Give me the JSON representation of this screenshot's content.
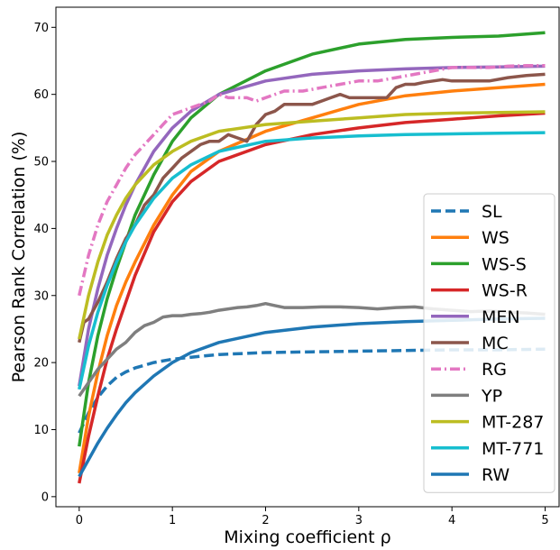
{
  "chart_data": {
    "type": "line",
    "xlabel": "Mixing coefficient ρ",
    "ylabel": "Pearson Rank Correlation (%)",
    "xlim": [
      -0.25,
      5.15
    ],
    "ylim": [
      -1.5,
      73
    ],
    "xticks": [
      0,
      1,
      2,
      3,
      4,
      5
    ],
    "yticks": [
      0,
      10,
      20,
      30,
      40,
      50,
      60,
      70
    ],
    "grid": false,
    "legend_position": "lower-right",
    "series": [
      {
        "name": "SL",
        "color": "#1f77b4",
        "style": "dashed",
        "x": [
          0,
          0.1,
          0.2,
          0.3,
          0.4,
          0.5,
          0.6,
          0.8,
          1.0,
          1.2,
          1.5,
          2.0,
          2.5,
          3.0,
          3.5,
          4.0,
          4.5,
          5.0
        ],
        "y": [
          9.5,
          12.5,
          14.8,
          16.5,
          17.8,
          18.6,
          19.2,
          20.0,
          20.5,
          20.8,
          21.2,
          21.5,
          21.6,
          21.7,
          21.8,
          21.9,
          21.9,
          22.0
        ]
      },
      {
        "name": "WS",
        "color": "#ff7f0e",
        "style": "solid",
        "x": [
          0,
          0.1,
          0.2,
          0.3,
          0.4,
          0.5,
          0.6,
          0.8,
          1.0,
          1.2,
          1.5,
          2.0,
          2.5,
          3.0,
          3.5,
          4.0,
          4.5,
          5.0
        ],
        "y": [
          3.5,
          12.0,
          18.5,
          24.0,
          28.5,
          32.0,
          35.0,
          40.5,
          45.0,
          48.5,
          51.5,
          54.5,
          56.5,
          58.5,
          59.8,
          60.5,
          61.0,
          61.5
        ]
      },
      {
        "name": "WS-S",
        "color": "#2ca02c",
        "style": "solid",
        "x": [
          0,
          0.1,
          0.2,
          0.3,
          0.4,
          0.5,
          0.6,
          0.8,
          1.0,
          1.2,
          1.5,
          2.0,
          2.5,
          3.0,
          3.5,
          4.0,
          4.5,
          5.0
        ],
        "y": [
          7.5,
          17.0,
          24.0,
          29.5,
          34.0,
          38.0,
          42.0,
          48.0,
          53.0,
          56.5,
          60.0,
          63.5,
          66.0,
          67.5,
          68.2,
          68.5,
          68.7,
          69.2
        ]
      },
      {
        "name": "WS-R",
        "color": "#d62728",
        "style": "solid",
        "x": [
          0,
          0.1,
          0.2,
          0.3,
          0.4,
          0.5,
          0.6,
          0.8,
          1.0,
          1.2,
          1.5,
          2.0,
          2.5,
          3.0,
          3.5,
          4.0,
          4.5,
          5.0
        ],
        "y": [
          2.0,
          9.0,
          15.0,
          20.5,
          25.0,
          29.0,
          33.0,
          39.5,
          44.0,
          47.0,
          50.0,
          52.5,
          54.0,
          55.0,
          55.8,
          56.3,
          56.8,
          57.2
        ]
      },
      {
        "name": "MEN",
        "color": "#9467bd",
        "style": "solid",
        "x": [
          0,
          0.1,
          0.2,
          0.3,
          0.4,
          0.5,
          0.6,
          0.8,
          1.0,
          1.2,
          1.5,
          2.0,
          2.5,
          3.0,
          3.5,
          4.0,
          4.5,
          5.0
        ],
        "y": [
          16.5,
          25.0,
          31.0,
          36.0,
          40.0,
          43.5,
          46.5,
          51.5,
          55.0,
          57.5,
          60.0,
          62.0,
          63.0,
          63.5,
          63.8,
          64.0,
          64.1,
          64.2
        ]
      },
      {
        "name": "MC",
        "color": "#8c564b",
        "style": "solid",
        "x": [
          0,
          0.05,
          0.1,
          0.2,
          0.3,
          0.4,
          0.5,
          0.6,
          0.7,
          0.8,
          0.9,
          1.0,
          1.1,
          1.2,
          1.3,
          1.4,
          1.5,
          1.6,
          1.7,
          1.8,
          1.9,
          2.0,
          2.1,
          2.2,
          2.3,
          2.4,
          2.5,
          2.6,
          2.7,
          2.8,
          2.9,
          3.0,
          3.1,
          3.2,
          3.3,
          3.4,
          3.5,
          3.6,
          3.7,
          3.8,
          3.9,
          4.0,
          4.2,
          4.4,
          4.6,
          4.8,
          5.0
        ],
        "y": [
          23.0,
          26.0,
          26.5,
          29.0,
          32.0,
          35.5,
          38.5,
          40.5,
          43.5,
          45.0,
          47.5,
          49.0,
          50.5,
          51.5,
          52.5,
          53.0,
          53.0,
          54.0,
          53.5,
          53.0,
          55.5,
          57.0,
          57.5,
          58.5,
          58.5,
          58.5,
          58.5,
          59.0,
          59.5,
          60.0,
          59.5,
          59.5,
          59.5,
          59.5,
          59.5,
          61.0,
          61.5,
          61.5,
          61.8,
          62.0,
          62.2,
          62.0,
          62.0,
          62.0,
          62.5,
          62.8,
          63.0
        ]
      },
      {
        "name": "RG",
        "color": "#e377c2",
        "style": "dashdot",
        "x": [
          0,
          0.1,
          0.2,
          0.3,
          0.4,
          0.5,
          0.6,
          0.7,
          0.8,
          0.9,
          1.0,
          1.1,
          1.2,
          1.3,
          1.4,
          1.5,
          1.6,
          1.7,
          1.8,
          1.9,
          2.0,
          2.2,
          2.4,
          2.6,
          2.8,
          3.0,
          3.2,
          3.4,
          3.6,
          3.8,
          4.0,
          4.2,
          4.4,
          4.6,
          4.8,
          5.0
        ],
        "y": [
          30.0,
          36.0,
          40.5,
          44.0,
          46.5,
          49.0,
          51.0,
          52.5,
          54.0,
          55.5,
          57.0,
          57.5,
          58.0,
          58.5,
          59.0,
          60.0,
          59.5,
          59.5,
          59.5,
          59.0,
          59.5,
          60.5,
          60.5,
          61.0,
          61.5,
          62.0,
          62.0,
          62.5,
          63.0,
          63.5,
          64.0,
          64.0,
          64.0,
          64.2,
          64.3,
          64.3
        ]
      },
      {
        "name": "YP",
        "color": "#7f7f7f",
        "style": "solid",
        "x": [
          0,
          0.1,
          0.2,
          0.3,
          0.4,
          0.5,
          0.6,
          0.7,
          0.8,
          0.9,
          1.0,
          1.1,
          1.2,
          1.3,
          1.4,
          1.5,
          1.6,
          1.7,
          1.8,
          1.9,
          2.0,
          2.1,
          2.2,
          2.4,
          2.6,
          2.8,
          3.0,
          3.2,
          3.4,
          3.6,
          3.8,
          4.0,
          4.2,
          4.4,
          4.6,
          4.8,
          5.0
        ],
        "y": [
          15.0,
          17.0,
          19.0,
          20.5,
          22.0,
          23.0,
          24.5,
          25.5,
          26.0,
          26.8,
          27.0,
          27.0,
          27.2,
          27.3,
          27.5,
          27.8,
          28.0,
          28.2,
          28.3,
          28.5,
          28.8,
          28.5,
          28.2,
          28.2,
          28.3,
          28.3,
          28.2,
          28.0,
          28.2,
          28.3,
          28.0,
          27.8,
          27.6,
          27.7,
          27.5,
          27.4,
          27.2
        ]
      },
      {
        "name": "MT-287",
        "color": "#bcbd22",
        "style": "solid",
        "x": [
          0,
          0.1,
          0.2,
          0.3,
          0.4,
          0.5,
          0.6,
          0.8,
          1.0,
          1.2,
          1.5,
          2.0,
          2.5,
          3.0,
          3.5,
          4.0,
          4.5,
          5.0
        ],
        "y": [
          23.5,
          30.0,
          35.0,
          39.0,
          42.0,
          44.5,
          46.5,
          49.5,
          51.5,
          53.0,
          54.5,
          55.5,
          56.0,
          56.5,
          57.0,
          57.2,
          57.3,
          57.4
        ]
      },
      {
        "name": "MT-771",
        "color": "#17becf",
        "style": "solid",
        "x": [
          0,
          0.1,
          0.2,
          0.3,
          0.4,
          0.5,
          0.6,
          0.8,
          1.0,
          1.2,
          1.5,
          2.0,
          2.5,
          3.0,
          3.5,
          4.0,
          4.5,
          5.0
        ],
        "y": [
          16.0,
          22.5,
          27.5,
          31.5,
          35.0,
          38.0,
          40.5,
          44.5,
          47.5,
          49.5,
          51.5,
          53.0,
          53.5,
          53.8,
          54.0,
          54.1,
          54.2,
          54.3
        ]
      },
      {
        "name": "RW",
        "color": "#1f77b4",
        "style": "solid",
        "x": [
          0,
          0.1,
          0.2,
          0.3,
          0.4,
          0.5,
          0.6,
          0.8,
          1.0,
          1.2,
          1.5,
          2.0,
          2.5,
          3.0,
          3.5,
          4.0,
          4.5,
          5.0
        ],
        "y": [
          3.0,
          5.5,
          8.0,
          10.2,
          12.2,
          14.0,
          15.5,
          18.0,
          20.0,
          21.5,
          23.0,
          24.5,
          25.3,
          25.8,
          26.1,
          26.3,
          26.5,
          26.6
        ]
      }
    ]
  }
}
